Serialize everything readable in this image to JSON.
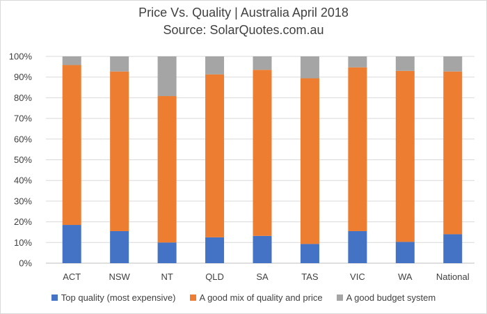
{
  "chart_data": {
    "type": "bar",
    "stacked": true,
    "title": "Price Vs. Quality | Australia April 2018",
    "subtitle": "Source: SolarQuotes.com.au",
    "categories": [
      "ACT",
      "NSW",
      "NT",
      "QLD",
      "SA",
      "TAS",
      "VIC",
      "WA",
      "National"
    ],
    "series": [
      {
        "name": "Top quality (most expensive)",
        "color": "#4472C4",
        "values": [
          18.5,
          15.5,
          10,
          12.5,
          13.2,
          9.3,
          15.5,
          10.3,
          14
        ]
      },
      {
        "name": "A good mix of quality and price",
        "color": "#ED7D31",
        "values": [
          77.3,
          77.2,
          70.8,
          78.8,
          80.3,
          80.1,
          79.2,
          82.7,
          78.7
        ]
      },
      {
        "name": "A good budget system",
        "color": "#A5A5A5",
        "values": [
          4.2,
          7.3,
          19.2,
          8.7,
          6.5,
          10.6,
          5.3,
          7,
          7.3
        ]
      }
    ],
    "ylim": [
      0,
      100
    ],
    "yticks": [
      "0%",
      "10%",
      "20%",
      "30%",
      "40%",
      "50%",
      "60%",
      "70%",
      "80%",
      "90%",
      "100%"
    ],
    "grid": true,
    "legend_position": "bottom"
  }
}
